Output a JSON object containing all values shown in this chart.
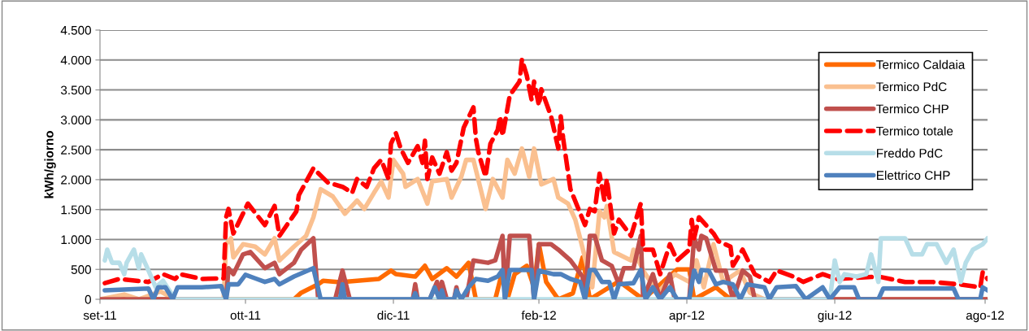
{
  "chart_data": {
    "type": "line",
    "ylabel": "kWh/giorno",
    "xlim": [
      "2011-09-01",
      "2012-09-01"
    ],
    "xticks": [
      {
        "value": "2011-09-01",
        "label": "set-11"
      },
      {
        "value": "2011-10-31",
        "label": "ott-11"
      },
      {
        "value": "2011-12-31",
        "label": "dic-11"
      },
      {
        "value": "2012-02-29",
        "label": "feb-12"
      },
      {
        "value": "2012-04-30",
        "label": "apr-12"
      },
      {
        "value": "2012-06-30",
        "label": "giu-12"
      },
      {
        "value": "2012-08-31",
        "label": "ago-12"
      }
    ],
    "ylim": [
      0,
      4500
    ],
    "yticks": [
      0,
      500,
      {
        "value": 1000,
        "label": "1.000"
      },
      {
        "value": 1500,
        "label": "1.500"
      },
      {
        "value": 2000,
        "label": "2.000"
      },
      {
        "value": 2500,
        "label": "2.500"
      },
      {
        "value": 3000,
        "label": "3.000"
      },
      {
        "value": 3500,
        "label": "3.500"
      },
      {
        "value": 4000,
        "label": "4.000"
      },
      {
        "value": 4500,
        "label": "4.500"
      }
    ],
    "grid": "y",
    "legend": "top right",
    "series": [
      {
        "name": "Termico Caldaia",
        "color": "#ff6a00",
        "line_style": "solid",
        "x": [
          "2011-09-01",
          "2011-11-20",
          "2011-11-23",
          "2011-11-30",
          "2011-12-02",
          "2011-12-08",
          "2011-12-10",
          "2011-12-16",
          "2011-12-25",
          "2011-12-30",
          "2012-01-01",
          "2012-01-09",
          "2012-01-13",
          "2012-01-16",
          "2012-01-22",
          "2012-01-26",
          "2012-01-31",
          "2012-02-03",
          "2012-02-11",
          "2012-02-14",
          "2012-02-16",
          "2012-02-19",
          "2012-02-24",
          "2012-02-27",
          "2012-02-29",
          "2012-03-03",
          "2012-03-08",
          "2012-03-14",
          "2012-03-18",
          "2012-03-21",
          "2012-04-02",
          "2012-04-12",
          "2012-04-26",
          "2012-05-01",
          "2012-05-03",
          "2012-05-12",
          "2012-05-18",
          "2012-09-01"
        ],
        "values": [
          0,
          0,
          110,
          250,
          310,
          290,
          290,
          310,
          340,
          480,
          420,
          380,
          560,
          340,
          520,
          380,
          610,
          0,
          0,
          480,
          0,
          420,
          560,
          200,
          920,
          290,
          0,
          100,
          700,
          0,
          300,
          0,
          500,
          500,
          0,
          200,
          0,
          0
        ]
      },
      {
        "name": "Termico PdC",
        "color": "#fac090",
        "line_style": "solid",
        "x": [
          "2011-09-01",
          "2011-09-11",
          "2011-09-17",
          "2011-09-26",
          "2011-10-02",
          "2011-10-22",
          "2011-10-23",
          "2011-10-25",
          "2011-10-26",
          "2011-10-30",
          "2011-11-04",
          "2011-11-08",
          "2011-11-12",
          "2011-11-14",
          "2011-11-20",
          "2011-11-25",
          "2011-11-28",
          "2011-12-01",
          "2011-12-06",
          "2011-12-11",
          "2011-12-16",
          "2011-12-19",
          "2011-12-23",
          "2011-12-26",
          "2011-12-29",
          "2011-12-31",
          "2012-01-04",
          "2012-01-05",
          "2012-01-10",
          "2012-01-14",
          "2012-01-16",
          "2012-01-22",
          "2012-01-24",
          "2012-01-28",
          "2012-01-30",
          "2012-02-02",
          "2012-02-07",
          "2012-02-10",
          "2012-02-14",
          "2012-02-16",
          "2012-02-19",
          "2012-02-22",
          "2012-02-25",
          "2012-02-27",
          "2012-03-01",
          "2012-03-06",
          "2012-03-08",
          "2012-03-12",
          "2012-03-15",
          "2012-03-17",
          "2012-03-22",
          "2012-03-25",
          "2012-03-27",
          "2012-03-28",
          "2012-03-31",
          "2012-04-07",
          "2012-04-08",
          "2012-04-12",
          "2012-04-18",
          "2012-04-25",
          "2012-05-01",
          "2012-05-04",
          "2012-05-07",
          "2012-05-11",
          "2012-05-15",
          "2012-05-22",
          "2012-05-26",
          "2012-06-01",
          "2012-09-01"
        ],
        "values": [
          0,
          80,
          0,
          130,
          0,
          0,
          920,
          1020,
          700,
          920,
          880,
          750,
          1020,
          650,
          880,
          1060,
          1370,
          1840,
          1720,
          1430,
          1650,
          1510,
          1780,
          1970,
          1700,
          2330,
          2100,
          1880,
          2010,
          1600,
          1970,
          2010,
          1700,
          2050,
          2330,
          2330,
          1510,
          2010,
          1700,
          2330,
          2100,
          2520,
          2050,
          2520,
          1920,
          2010,
          1700,
          1600,
          1330,
          1020,
          200,
          1470,
          1370,
          1560,
          790,
          650,
          830,
          480,
          110,
          420,
          290,
          650,
          200,
          920,
          290,
          480,
          110,
          0,
          0
        ]
      },
      {
        "name": "Termico CHP",
        "color": "#c0504d",
        "line_style": "solid",
        "x": [
          "2011-09-01",
          "2011-10-23",
          "2011-10-24",
          "2011-10-26",
          "2011-10-30",
          "2011-11-02",
          "2011-11-08",
          "2011-11-12",
          "2011-11-14",
          "2011-11-20",
          "2011-11-23",
          "2011-11-28",
          "2011-11-30",
          "2011-12-07",
          "2011-12-10",
          "2011-12-13",
          "2012-01-08",
          "2012-01-09",
          "2012-01-10",
          "2012-01-15",
          "2012-01-18",
          "2012-01-19",
          "2012-01-20",
          "2012-01-22",
          "2012-01-25",
          "2012-01-26",
          "2012-01-27",
          "2012-01-30",
          "2012-02-02",
          "2012-02-08",
          "2012-02-11",
          "2012-02-14",
          "2012-02-15",
          "2012-02-17",
          "2012-02-25",
          "2012-02-27",
          "2012-02-29",
          "2012-03-05",
          "2012-03-08",
          "2012-03-13",
          "2012-03-18",
          "2012-03-19",
          "2012-03-21",
          "2012-03-23",
          "2012-03-26",
          "2012-03-30",
          "2012-04-02",
          "2012-04-04",
          "2012-04-08",
          "2012-04-11",
          "2012-04-12",
          "2012-04-16",
          "2012-04-19",
          "2012-04-23",
          "2012-04-25",
          "2012-05-01",
          "2012-05-03",
          "2012-05-05",
          "2012-05-06",
          "2012-05-08",
          "2012-05-12",
          "2012-05-16",
          "2012-05-19",
          "2012-05-23",
          "2012-05-26",
          "2012-05-28",
          "2012-09-01"
        ],
        "values": [
          0,
          0,
          520,
          420,
          750,
          790,
          520,
          610,
          420,
          610,
          830,
          1020,
          0,
          0,
          480,
          0,
          0,
          250,
          0,
          0,
          290,
          0,
          290,
          0,
          0,
          200,
          0,
          0,
          650,
          610,
          650,
          1060,
          0,
          1060,
          1060,
          0,
          920,
          920,
          830,
          650,
          380,
          0,
          1060,
          1060,
          650,
          560,
          250,
          520,
          520,
          1060,
          0,
          420,
          0,
          420,
          0,
          0,
          1020,
          830,
          1060,
          1020,
          480,
          480,
          0,
          480,
          380,
          0,
          0
        ]
      },
      {
        "name": "Termico totale",
        "color": "#ff0000",
        "line_style": "dashed",
        "x": [
          "2011-09-03",
          "2011-09-09",
          "2011-09-21",
          "2011-09-27",
          "2011-10-02",
          "2011-10-04",
          "2011-10-13",
          "2011-10-22",
          "2011-10-23",
          "2011-10-24",
          "2011-10-26",
          "2011-11-01",
          "2011-11-08",
          "2011-11-12",
          "2011-11-14",
          "2011-11-21",
          "2011-11-22",
          "2011-11-28",
          "2011-12-04",
          "2011-12-10",
          "2011-12-14",
          "2011-12-16",
          "2011-12-20",
          "2011-12-23",
          "2011-12-26",
          "2011-12-29",
          "2011-12-30",
          "2012-01-01",
          "2012-01-03",
          "2012-01-06",
          "2012-01-10",
          "2012-01-12",
          "2012-01-13",
          "2012-01-14",
          "2012-01-16",
          "2012-01-19",
          "2012-01-22",
          "2012-01-24",
          "2012-01-26",
          "2012-01-29",
          "2012-02-02",
          "2012-02-03",
          "2012-02-04",
          "2012-02-07",
          "2012-02-09",
          "2012-02-12",
          "2012-02-13",
          "2012-02-14",
          "2012-02-17",
          "2012-02-21",
          "2012-02-22",
          "2012-02-24",
          "2012-02-26",
          "2012-02-27",
          "2012-02-29",
          "2012-03-01",
          "2012-03-05",
          "2012-03-08",
          "2012-03-09",
          "2012-03-10",
          "2012-03-13",
          "2012-03-19",
          "2012-03-21",
          "2012-03-23",
          "2012-03-25",
          "2012-03-27",
          "2012-03-28",
          "2012-03-31",
          "2012-04-02",
          "2012-04-07",
          "2012-04-11",
          "2012-04-12",
          "2012-04-16",
          "2012-04-19",
          "2012-04-23",
          "2012-04-26",
          "2012-05-01",
          "2012-05-02",
          "2012-05-03",
          "2012-05-05",
          "2012-05-11",
          "2012-05-13",
          "2012-05-18",
          "2012-05-19",
          "2012-05-23",
          "2012-05-28",
          "2012-06-03",
          "2012-06-06",
          "2012-06-13",
          "2012-06-17",
          "2012-06-20",
          "2012-06-25",
          "2012-07-01",
          "2012-07-18",
          "2012-07-29",
          "2012-08-09",
          "2012-08-20",
          "2012-08-29",
          "2012-08-30",
          "2012-09-01"
        ],
        "values": [
          270,
          340,
          290,
          420,
          340,
          420,
          340,
          350,
          1370,
          1510,
          1100,
          1600,
          1240,
          1560,
          1060,
          1470,
          1740,
          2190,
          1950,
          1880,
          1780,
          2010,
          1880,
          2190,
          2330,
          2010,
          2600,
          2780,
          2520,
          2280,
          2560,
          2280,
          2650,
          2010,
          2370,
          2100,
          2460,
          2150,
          2280,
          2870,
          3210,
          2690,
          2460,
          2050,
          2600,
          2830,
          3060,
          2730,
          3410,
          3640,
          4010,
          3740,
          3330,
          3640,
          3240,
          3510,
          3060,
          2520,
          3060,
          2690,
          1840,
          1240,
          1510,
          1470,
          2100,
          1650,
          2010,
          1100,
          1330,
          1060,
          1600,
          830,
          830,
          420,
          920,
          650,
          830,
          1330,
          1020,
          1370,
          1100,
          970,
          880,
          560,
          830,
          420,
          290,
          480,
          380,
          290,
          340,
          420,
          340,
          380,
          290,
          290,
          250,
          200,
          450,
          340
        ]
      },
      {
        "name": "Freddo PdC",
        "color": "#b7dee8",
        "line_style": "solid",
        "x": [
          "2011-09-03",
          "2011-09-04",
          "2011-09-06",
          "2011-09-09",
          "2011-09-11",
          "2011-09-12",
          "2011-09-15",
          "2011-09-17",
          "2011-09-18",
          "2011-09-21",
          "2011-09-24",
          "2011-09-27",
          "2011-10-02",
          "2012-06-28",
          "2012-06-30",
          "2012-07-02",
          "2012-07-04",
          "2012-07-09",
          "2012-07-13",
          "2012-07-15",
          "2012-07-18",
          "2012-07-19",
          "2012-07-29",
          "2012-08-01",
          "2012-08-05",
          "2012-08-07",
          "2012-08-11",
          "2012-08-15",
          "2012-08-18",
          "2012-08-21",
          "2012-08-23",
          "2012-08-26",
          "2012-08-30",
          "2012-09-01"
        ],
        "values": [
          650,
          830,
          610,
          610,
          420,
          610,
          830,
          520,
          750,
          480,
          200,
          310,
          0,
          0,
          650,
          290,
          420,
          380,
          420,
          750,
          290,
          1020,
          1020,
          750,
          750,
          920,
          920,
          610,
          830,
          290,
          610,
          830,
          920,
          1020
        ]
      },
      {
        "name": "Elettrico CHP",
        "color": "#4f81bd",
        "line_style": "solid",
        "x": [
          "2011-09-03",
          "2011-09-21",
          "2011-09-23",
          "2011-09-25",
          "2011-09-28",
          "2011-10-01",
          "2011-10-03",
          "2011-10-13",
          "2011-10-21",
          "2011-10-23",
          "2011-10-24",
          "2011-10-28",
          "2011-10-31",
          "2011-11-04",
          "2011-11-08",
          "2011-11-12",
          "2011-11-14",
          "2011-11-20",
          "2011-11-28",
          "2011-12-01",
          "2011-12-09",
          "2011-12-10",
          "2011-12-11",
          "2012-01-08",
          "2012-01-09",
          "2012-01-10",
          "2012-01-15",
          "2012-01-17",
          "2012-01-19",
          "2012-01-20",
          "2012-01-21",
          "2012-01-25",
          "2012-01-26",
          "2012-01-28",
          "2012-01-31",
          "2012-02-03",
          "2012-02-08",
          "2012-02-12",
          "2012-02-14",
          "2012-02-15",
          "2012-02-17",
          "2012-02-26",
          "2012-02-27",
          "2012-02-29",
          "2012-03-06",
          "2012-03-09",
          "2012-03-13",
          "2012-03-17",
          "2012-03-19",
          "2012-03-21",
          "2012-03-23",
          "2012-03-26",
          "2012-03-29",
          "2012-03-31",
          "2012-04-02",
          "2012-04-08",
          "2012-04-11",
          "2012-04-13",
          "2012-04-16",
          "2012-04-19",
          "2012-04-23",
          "2012-04-26",
          "2012-05-01",
          "2012-05-03",
          "2012-05-05",
          "2012-05-06",
          "2012-05-09",
          "2012-05-12",
          "2012-05-15",
          "2012-05-19",
          "2012-05-22",
          "2012-05-25",
          "2012-06-01",
          "2012-06-03",
          "2012-06-06",
          "2012-06-14",
          "2012-06-18",
          "2012-06-25",
          "2012-06-28",
          "2012-07-02",
          "2012-07-08",
          "2012-07-10",
          "2012-07-18",
          "2012-07-20",
          "2012-08-18",
          "2012-08-20",
          "2012-08-29",
          "2012-08-30",
          "2012-09-01"
        ],
        "values": [
          150,
          180,
          0,
          200,
          200,
          0,
          200,
          200,
          220,
          0,
          250,
          250,
          410,
          350,
          290,
          340,
          250,
          380,
          520,
          0,
          0,
          250,
          0,
          0,
          100,
          0,
          0,
          200,
          0,
          150,
          0,
          0,
          150,
          0,
          200,
          340,
          310,
          380,
          490,
          0,
          490,
          490,
          0,
          480,
          420,
          420,
          340,
          290,
          0,
          490,
          490,
          290,
          290,
          0,
          250,
          270,
          490,
          0,
          200,
          0,
          200,
          0,
          0,
          480,
          290,
          490,
          480,
          250,
          290,
          250,
          0,
          250,
          200,
          0,
          200,
          220,
          0,
          200,
          0,
          200,
          200,
          0,
          0,
          180,
          180,
          0,
          0,
          200,
          150
        ]
      }
    ]
  }
}
